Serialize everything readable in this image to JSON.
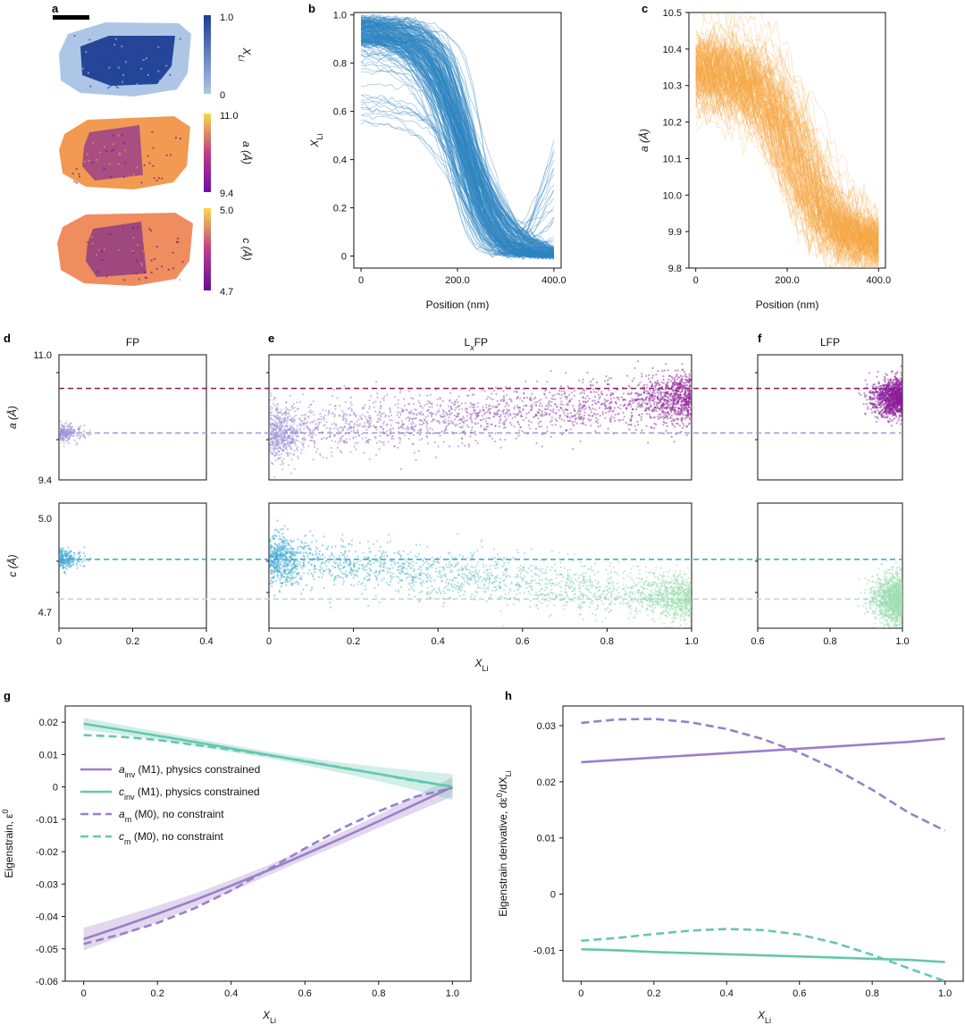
{
  "chart_data": [
    {
      "panel": "a",
      "type": "heatmap",
      "maps": [
        {
          "label": "X",
          "sub": "Li",
          "cbar_ticks": [
            "1.0",
            "0"
          ],
          "range": [
            0,
            1
          ],
          "colormap": "blues",
          "colors": [
            "#adc6e6",
            "#1d3e94"
          ]
        },
        {
          "label": "a (Å)",
          "cbar_ticks": [
            "11.0",
            "9.4"
          ],
          "range": [
            9.4,
            11.0
          ],
          "colormap": "plasma",
          "colors": [
            "#6b10a5",
            "#f29a52"
          ]
        },
        {
          "label": "c (Å)",
          "cbar_ticks": [
            "5.0",
            "4.7"
          ],
          "range": [
            4.7,
            5.0
          ],
          "colormap": "plasma",
          "colors": [
            "#5c1197",
            "#ef8d5f"
          ]
        }
      ]
    },
    {
      "panel": "b",
      "type": "line",
      "xlabel": "Position (nm)",
      "ylabel": "X",
      "ylabel_sub": "Li",
      "xticks": [
        "0",
        "200.0",
        "400.0"
      ],
      "yticks": [
        "0",
        "0.2",
        "0.4",
        "0.6",
        "0.8",
        "1.0"
      ],
      "xlim": [
        -15,
        415
      ],
      "ylim": [
        -0.05,
        1.01
      ],
      "color": "#2e86c1",
      "n_profiles": 220,
      "profile_shape": {
        "high": 1.0,
        "low": 0.0,
        "midpoint_x": 210
      }
    },
    {
      "panel": "c",
      "type": "line",
      "xlabel": "Position (nm)",
      "ylabel": "a (Å)",
      "xticks": [
        "0",
        "200.0",
        "400.0"
      ],
      "yticks": [
        "9.8",
        "9.9",
        "10.0",
        "10.1",
        "10.2",
        "10.3",
        "10.4",
        "10.5"
      ],
      "xlim": [
        -15,
        415
      ],
      "ylim": [
        9.8,
        10.5
      ],
      "color": "#f5a742",
      "n_profiles": 150,
      "profile_shape": {
        "high": 10.35,
        "low": 9.86,
        "midpoint_x": 220
      }
    },
    {
      "panel": "d",
      "type": "scatter",
      "title": "FP",
      "xlim": [
        0,
        0.4
      ],
      "xticks": [
        "0",
        "0.2",
        "0.4"
      ],
      "a": {
        "ylabel": "a (Å)",
        "ylim": [
          9.4,
          11.0
        ],
        "yticks": [
          "9.4",
          "11.0"
        ],
        "cloud_center": [
          0.04,
          10.0
        ],
        "n": 220
      },
      "c": {
        "ylabel": "c (Å)",
        "ylim": [
          4.7,
          5.0
        ],
        "yticks": [
          "4.7",
          "5.0"
        ],
        "cloud_center": [
          0.04,
          4.865
        ],
        "n": 220
      }
    },
    {
      "panel": "e",
      "type": "scatter",
      "title": "L",
      "title_x": "x",
      "title_tail": "FP",
      "xlabel": "X",
      "xlabel_sub": "Li",
      "xlim": [
        0,
        1.0
      ],
      "xticks": [
        "0",
        "0.2",
        "0.4",
        "0.6",
        "0.8",
        "1.0"
      ],
      "a_trend": {
        "start": 10.0,
        "end": 10.45
      },
      "c_trend": {
        "start": 4.87,
        "end": 4.77
      },
      "n": 2600
    },
    {
      "panel": "f",
      "type": "scatter",
      "title": "LFP",
      "xlim": [
        0.6,
        1.0
      ],
      "xticks": [
        "0.6",
        "0.8",
        "1.0"
      ],
      "a_cloud_center": [
        0.99,
        10.45
      ],
      "c_cloud_center": [
        0.99,
        4.77
      ],
      "n": 1200
    },
    {
      "panel": "d-f-reference-lines",
      "a_lines": [
        {
          "y": 10.57,
          "color": "#8a1a5e"
        },
        {
          "y": 10.0,
          "color": "#9e98cc"
        }
      ],
      "c_lines": [
        {
          "y": 4.865,
          "color": "#3aa3c8"
        },
        {
          "y": 4.77,
          "color": "#b9dcc0"
        }
      ],
      "a_colors": [
        "#9990d5",
        "#8b1b96"
      ],
      "c_colors": [
        "#3ba6d2",
        "#9edfae"
      ]
    },
    {
      "panel": "g",
      "type": "line",
      "xlabel": "X",
      "xlabel_sub": "Li",
      "ylabel": "Eigenstrain, ε",
      "ylabel_sup": "0",
      "xlim": [
        -0.05,
        1.05
      ],
      "ylim": [
        -0.06,
        0.025
      ],
      "xticks": [
        0,
        0.2,
        0.4,
        0.6,
        0.8,
        1.0
      ],
      "yticks": [
        0.02,
        0.01,
        0,
        -0.01,
        -0.02,
        -0.03,
        -0.04,
        -0.05,
        -0.06
      ],
      "x": [
        0,
        0.1,
        0.2,
        0.3,
        0.4,
        0.5,
        0.6,
        0.7,
        0.8,
        0.9,
        1.0
      ],
      "series": [
        {
          "name": "a",
          "name_sub": "inv",
          "name_tail": " (M1), physics constrained",
          "style": "solid",
          "color": "#9b7fc8",
          "values": [
            -0.047,
            -0.0432,
            -0.0392,
            -0.035,
            -0.0305,
            -0.0258,
            -0.0208,
            -0.0158,
            -0.0106,
            -0.0053,
            0.0
          ],
          "band": [
            0.0035,
            0.003,
            0.0025,
            0.002,
            0.0018,
            0.0016,
            0.0016,
            0.0018,
            0.002,
            0.0025,
            0.003
          ]
        },
        {
          "name": "c",
          "name_sub": "inv",
          "name_tail": " (M1), physics constrained",
          "style": "solid",
          "color": "#66c7b0",
          "values": [
            0.0195,
            0.0177,
            0.0158,
            0.0139,
            0.0119,
            0.0099,
            0.0079,
            0.0059,
            0.004,
            0.002,
            0.0
          ],
          "band": [
            0.0018,
            0.0015,
            0.0013,
            0.0012,
            0.0011,
            0.001,
            0.0012,
            0.0016,
            0.0022,
            0.003,
            0.004
          ]
        },
        {
          "name": "a",
          "name_sub": "m",
          "name_tail": " (M0), no constraint",
          "style": "dashed",
          "color": "#9b7fc8",
          "values": [
            -0.0485,
            -0.0455,
            -0.042,
            -0.0375,
            -0.032,
            -0.0255,
            -0.019,
            -0.0128,
            -0.0075,
            -0.003,
            -0.0003
          ]
        },
        {
          "name": "c",
          "name_sub": "m",
          "name_tail": " (M0), no constraint",
          "style": "dashed",
          "color": "#66c7b0",
          "values": [
            0.016,
            0.0155,
            0.0145,
            0.013,
            0.0115,
            0.0098,
            0.008,
            0.006,
            0.004,
            0.0018,
            0.0002
          ]
        }
      ]
    },
    {
      "panel": "h",
      "type": "line",
      "xlabel": "X",
      "xlabel_sub": "Li",
      "ylabel": "Eigenstrain derivative,",
      "ylabel_frac_num": "dε",
      "ylabel_frac_num_sup": "0",
      "ylabel_frac_den": "dX",
      "ylabel_frac_den_sub": "Li",
      "xlim": [
        -0.05,
        1.05
      ],
      "ylim": [
        -0.0155,
        0.0335
      ],
      "xticks": [
        0,
        0.2,
        0.4,
        0.6,
        0.8,
        1.0
      ],
      "yticks": [
        0.03,
        0.02,
        0.01,
        0,
        -0.01
      ],
      "x": [
        0,
        0.1,
        0.2,
        0.3,
        0.4,
        0.5,
        0.6,
        0.7,
        0.8,
        0.9,
        1.0
      ],
      "series": [
        {
          "style": "solid",
          "color": "#9b7fc8",
          "values": [
            0.0235,
            0.0239,
            0.0243,
            0.0247,
            0.0251,
            0.0255,
            0.0259,
            0.0263,
            0.0267,
            0.0271,
            0.0277
          ]
        },
        {
          "style": "dashed",
          "color": "#9b7fc8",
          "values": [
            0.0305,
            0.0311,
            0.0312,
            0.0306,
            0.0294,
            0.0276,
            0.0252,
            0.0222,
            0.0186,
            0.0145,
            0.0113
          ]
        },
        {
          "style": "solid",
          "color": "#66c7b0",
          "values": [
            -0.0098,
            -0.01,
            -0.0103,
            -0.0105,
            -0.0107,
            -0.0109,
            -0.0111,
            -0.0113,
            -0.0115,
            -0.0117,
            -0.0121
          ]
        },
        {
          "style": "dashed",
          "color": "#66c7b0",
          "values": [
            -0.0083,
            -0.0078,
            -0.0071,
            -0.0065,
            -0.0062,
            -0.0064,
            -0.0072,
            -0.0087,
            -0.0108,
            -0.0132,
            -0.0155
          ]
        }
      ]
    }
  ],
  "panels": {
    "a": "a",
    "b": "b",
    "c": "c",
    "d": "d",
    "e": "e",
    "f": "f",
    "g": "g",
    "h": "h"
  }
}
